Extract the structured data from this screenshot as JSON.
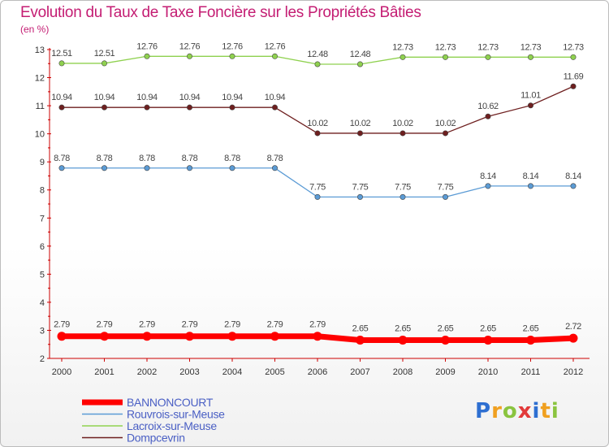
{
  "chart_data": {
    "type": "line",
    "title": "Evolution du Taux de Taxe Foncière sur les Propriétés Bâties",
    "ylabel": "(en %)",
    "xlabel": "",
    "x": [
      "2000",
      "2001",
      "2002",
      "2003",
      "2004",
      "2005",
      "2006",
      "2007",
      "2008",
      "2009",
      "2010",
      "2011",
      "2012"
    ],
    "ylim": [
      2,
      13
    ],
    "yticks": [
      "2",
      "3",
      "4",
      "5",
      "6",
      "7",
      "8",
      "9",
      "10",
      "11",
      "12",
      "13"
    ],
    "grid": false,
    "legend_position": "bottom-left",
    "series": [
      {
        "name": "BANNONCOURT",
        "color": "#ff0000",
        "values": [
          2.79,
          2.79,
          2.79,
          2.79,
          2.79,
          2.79,
          2.79,
          2.65,
          2.65,
          2.65,
          2.65,
          2.65,
          2.72
        ],
        "labels": [
          "2.79",
          "2.79",
          "2.79",
          "2.79",
          "2.79",
          "2.79",
          "2.79",
          "2.65",
          "2.65",
          "2.65",
          "2.65",
          "2.65",
          "2.72"
        ]
      },
      {
        "name": "Rouvrois-sur-Meuse",
        "color": "#5b9bd5",
        "values": [
          8.78,
          8.78,
          8.78,
          8.78,
          8.78,
          8.78,
          7.75,
          7.75,
          7.75,
          7.75,
          8.14,
          8.14,
          8.14
        ],
        "labels": [
          "8.78",
          "8.78",
          "8.78",
          "8.78",
          "8.78",
          "8.78",
          "7.75",
          "7.75",
          "7.75",
          "7.75",
          "8.14",
          "8.14",
          "8.14"
        ]
      },
      {
        "name": "Lacroix-sur-Meuse",
        "color": "#8fd14f",
        "values": [
          12.51,
          12.51,
          12.76,
          12.76,
          12.76,
          12.76,
          12.48,
          12.48,
          12.73,
          12.73,
          12.73,
          12.73,
          12.73
        ],
        "labels": [
          "12.51",
          "12.51",
          "12.76",
          "12.76",
          "12.76",
          "12.76",
          "12.48",
          "12.48",
          "12.73",
          "12.73",
          "12.73",
          "12.73",
          "12.73"
        ]
      },
      {
        "name": "Dompcevrin",
        "color": "#6e1f1f",
        "values": [
          10.94,
          10.94,
          10.94,
          10.94,
          10.94,
          10.94,
          10.02,
          10.02,
          10.02,
          10.02,
          10.62,
          11.01,
          11.69
        ],
        "labels": [
          "10.94",
          "10.94",
          "10.94",
          "10.94",
          "10.94",
          "10.94",
          "10.02",
          "10.02",
          "10.02",
          "10.02",
          "10.62",
          "11.01",
          "11.69"
        ]
      }
    ],
    "legend_text_color": "#4a5fc4",
    "axis_color": "#cc0000"
  },
  "brand": {
    "letters": [
      "P",
      "r",
      "o",
      "x",
      "i",
      "t",
      "i"
    ],
    "colors": [
      "#2e6fd1",
      "#f0a020",
      "#8ac43f",
      "#e23a3a",
      "#2e6fd1",
      "#f0a020",
      "#8ac43f"
    ]
  }
}
